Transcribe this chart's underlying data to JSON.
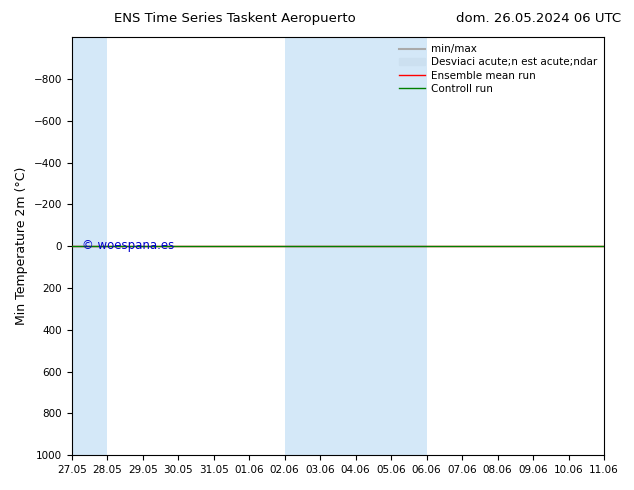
{
  "title_left": "ENS Time Series Taskent Aeropuerto",
  "title_right": "dom. 26.05.2024 06 UTC",
  "ylabel": "Min Temperature 2m (°C)",
  "ylim": [
    -1000,
    1000
  ],
  "yticks": [
    -800,
    -600,
    -400,
    -200,
    0,
    200,
    400,
    600,
    800,
    1000
  ],
  "xtick_labels": [
    "27.05",
    "28.05",
    "29.05",
    "30.05",
    "31.05",
    "01.06",
    "02.06",
    "03.06",
    "04.06",
    "05.06",
    "06.06",
    "07.06",
    "08.06",
    "09.06",
    "10.06",
    "11.06"
  ],
  "bg_color": "#ffffff",
  "plot_bg_color": "#ffffff",
  "shaded_bands": [
    {
      "xmin": 0,
      "xmax": 1,
      "color": "#d4e8f8"
    },
    {
      "xmin": 6,
      "xmax": 8,
      "color": "#d4e8f8"
    },
    {
      "xmin": 8,
      "xmax": 10,
      "color": "#d4e8f8"
    }
  ],
  "green_line_y": 0,
  "green_line_color": "#008000",
  "red_line_y": 0,
  "red_line_color": "#ff0000",
  "watermark": "© woespana.es",
  "watermark_color": "#0000cc",
  "legend_entries": [
    {
      "label": "min/max",
      "color": "#aaaaaa",
      "lw": 1.5,
      "ls": "-",
      "type": "line"
    },
    {
      "label": "Desviaci acute;n est acute;ndar",
      "color": "#cce0f0",
      "lw": 8,
      "ls": "-",
      "type": "patch"
    },
    {
      "label": "Ensemble mean run",
      "color": "#ff0000",
      "lw": 1.0,
      "ls": "-",
      "type": "line"
    },
    {
      "label": "Controll run",
      "color": "#008000",
      "lw": 1.0,
      "ls": "-",
      "type": "line"
    }
  ]
}
